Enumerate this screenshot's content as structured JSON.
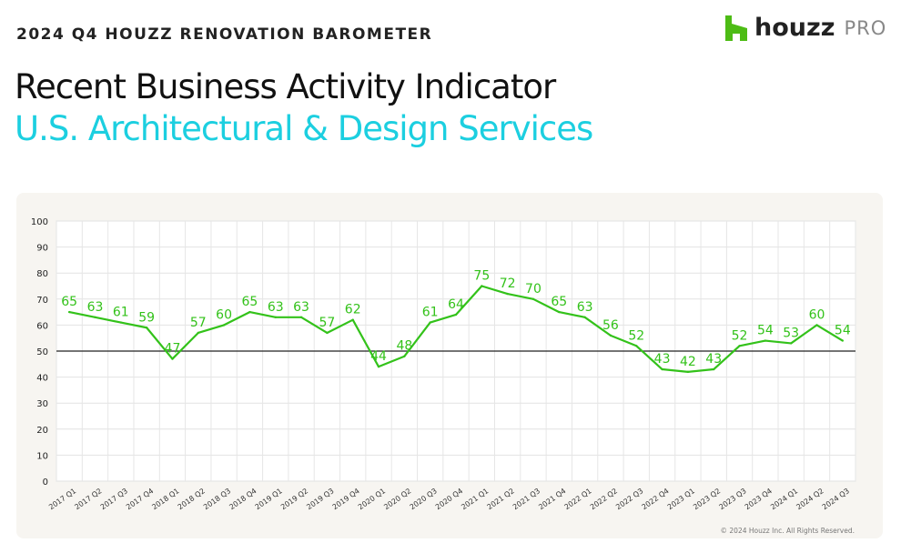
{
  "header": {
    "eyebrow": "2024 Q4 HOUZZ RENOVATION BAROMETER",
    "title": "Recent Business Activity Indicator",
    "subtitle": "U.S. Architectural & Design Services"
  },
  "logo": {
    "word": "houzz",
    "suffix": "PRO",
    "color": "#4dbc15"
  },
  "footer": {
    "copyright": "© 2024 Houzz Inc. All Rights Reserved."
  },
  "chart_data": {
    "type": "line",
    "title": "Recent Business Activity Indicator",
    "categories": [
      "2017 Q1",
      "2017 Q2",
      "2017 Q3",
      "2017 Q4",
      "2018 Q1",
      "2018 Q2",
      "2018 Q3",
      "2018 Q4",
      "2019 Q1",
      "2019 Q2",
      "2019 Q3",
      "2019 Q4",
      "2020 Q1",
      "2020 Q2",
      "2020 Q3",
      "2020 Q4",
      "2021 Q1",
      "2021 Q2",
      "2021 Q3",
      "2021 Q4",
      "2022 Q1",
      "2022 Q2",
      "2022 Q3",
      "2022 Q4",
      "2023 Q1",
      "2023 Q2",
      "2023 Q3",
      "2023 Q4",
      "2024 Q1",
      "2024 Q2",
      "2024 Q3"
    ],
    "series": [
      {
        "name": "Recent Business Activity Indicator",
        "color": "#33c21a",
        "values": [
          65,
          63,
          61,
          59,
          47,
          57,
          60,
          65,
          63,
          63,
          57,
          62,
          44,
          48,
          61,
          64,
          75,
          72,
          70,
          65,
          63,
          56,
          52,
          43,
          42,
          43,
          52,
          54,
          53,
          60,
          54
        ]
      }
    ],
    "reference_line": 50,
    "ylim": [
      0,
      100
    ],
    "yticks": [
      0,
      10,
      20,
      30,
      40,
      50,
      60,
      70,
      80,
      90,
      100
    ],
    "grid": true,
    "xlabel": "",
    "ylabel": ""
  }
}
